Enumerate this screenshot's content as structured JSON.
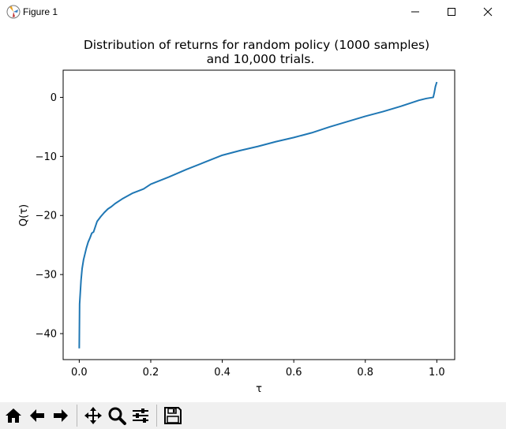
{
  "window": {
    "title": "Figure 1",
    "controls": [
      "minimize",
      "maximize",
      "close"
    ]
  },
  "toolbar": {
    "buttons": [
      "home-icon",
      "back-arrow-icon",
      "forward-arrow-icon",
      "pan-icon",
      "zoom-icon",
      "configure-subplots-icon",
      "save-icon"
    ]
  },
  "chart_data": {
    "type": "line",
    "title_line1": "Distribution of returns for random policy (1000 samples)",
    "title_line2": "and 10,000 trials.",
    "xlabel": "τ",
    "ylabel": "Q(τ)",
    "xlim": [
      -0.045,
      1.05
    ],
    "ylim": [
      -44.4,
      4.6
    ],
    "xticks": [
      0.0,
      0.2,
      0.4,
      0.6,
      0.8,
      1.0
    ],
    "xtick_labels": [
      "0.0",
      "0.2",
      "0.4",
      "0.6",
      "0.8",
      "1.0"
    ],
    "yticks": [
      0,
      -10,
      -20,
      -30,
      -40
    ],
    "ytick_labels": [
      "0",
      "−10",
      "−20",
      "−30",
      "−40"
    ],
    "line_color": "#1f77b4",
    "grid": false,
    "series": [
      {
        "x": [
          0.0,
          0.001,
          0.003,
          0.005,
          0.008,
          0.012,
          0.016,
          0.02,
          0.025,
          0.03,
          0.035,
          0.04,
          0.05,
          0.06,
          0.07,
          0.08,
          0.09,
          0.1,
          0.12,
          0.15,
          0.18,
          0.2,
          0.25,
          0.3,
          0.35,
          0.4,
          0.45,
          0.5,
          0.55,
          0.6,
          0.65,
          0.7,
          0.75,
          0.8,
          0.85,
          0.9,
          0.95,
          0.97,
          0.99,
          0.993,
          0.996,
          1.0
        ],
        "y": [
          -42.5,
          -35.0,
          -33.0,
          -31.0,
          -29.0,
          -27.5,
          -26.5,
          -25.5,
          -24.5,
          -23.8,
          -23.0,
          -22.8,
          -21.0,
          -20.2,
          -19.5,
          -18.9,
          -18.5,
          -18.0,
          -17.2,
          -16.2,
          -15.5,
          -14.7,
          -13.5,
          -12.2,
          -11.0,
          -9.8,
          -9.0,
          -8.3,
          -7.5,
          -6.8,
          -6.0,
          -5.0,
          -4.1,
          -3.2,
          -2.4,
          -1.5,
          -0.5,
          -0.2,
          0.0,
          0.8,
          1.8,
          2.6
        ]
      }
    ]
  }
}
